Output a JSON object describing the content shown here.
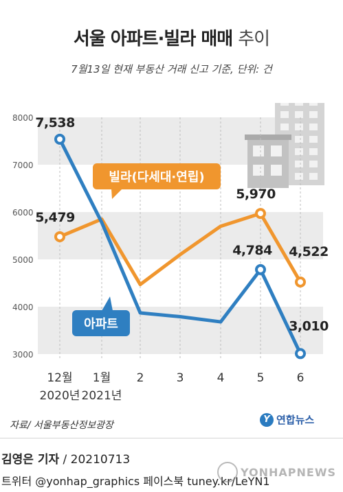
{
  "header": {
    "title_bold": "서울 아파트·빌라 매매",
    "title_light": "추이",
    "subtitle": "7월13일 현재 부동산 거래 신고 기준, 단위: 건"
  },
  "chart_data": {
    "type": "line",
    "categories": [
      "12월\n2020년",
      "1월\n2021년",
      "2",
      "3",
      "4",
      "5",
      "6"
    ],
    "ylim": [
      3000,
      8000
    ],
    "yticks": [
      3000,
      4000,
      5000,
      6000,
      7000,
      8000
    ],
    "grid": "alternating horizontal bands",
    "series": [
      {
        "name": "빌라(다세대·연립)",
        "color": "#f0962e",
        "values": [
          5479,
          5850,
          4470,
          5100,
          5700,
          5970,
          4522
        ],
        "labels": {
          "0": "5,479",
          "5": "5,970",
          "6": "4,522"
        }
      },
      {
        "name": "아파트",
        "color": "#2f7fc1",
        "values": [
          7538,
          5780,
          3870,
          3790,
          3680,
          4784,
          3010
        ],
        "labels": {
          "0": "7,538",
          "5": "4,784",
          "6": "3,010"
        }
      }
    ]
  },
  "footer": {
    "source": "자료/ 서울부동산정보광장",
    "logo_text": "연합뉴스",
    "reporter": "김영은 기자",
    "date": " / 20210713",
    "social": "트위터 @yonhap_graphics  페이스북 tuney.kr/LeYN1",
    "watermark": "YONHAPNEWS"
  }
}
